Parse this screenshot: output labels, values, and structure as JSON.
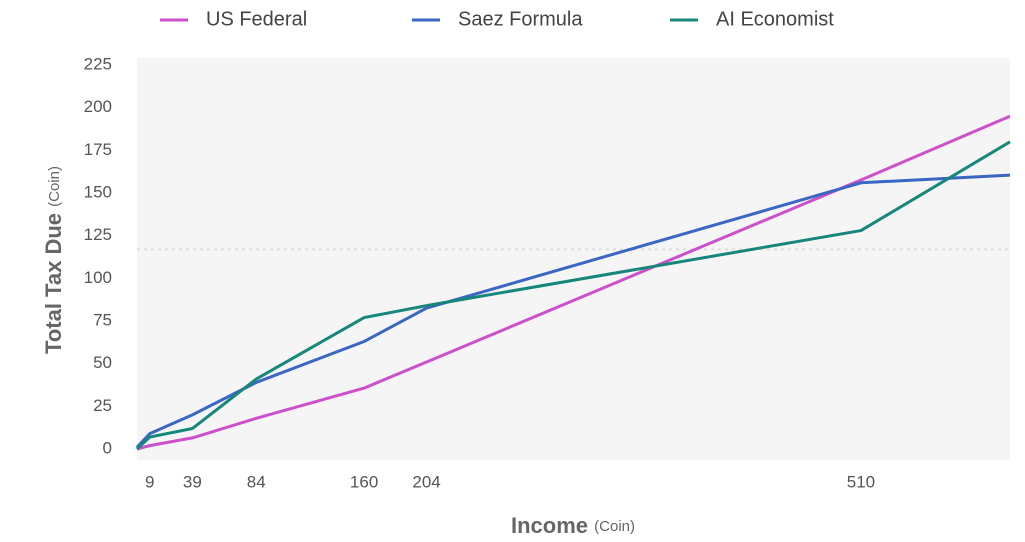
{
  "chart_data": {
    "type": "line",
    "xlabel": "Income",
    "xlabel_unit": "(Coin)",
    "ylabel": "Total Tax Due",
    "ylabel_unit": "(Coin)",
    "x": [
      0,
      9,
      39,
      84,
      160,
      204,
      510,
      615
    ],
    "xlim": [
      0,
      615
    ],
    "xticks": [
      9,
      39,
      84,
      160,
      204,
      510
    ],
    "ylim": [
      0,
      225
    ],
    "yticks": [
      0,
      25,
      50,
      75,
      100,
      125,
      150,
      175,
      200,
      225
    ],
    "hline": 117,
    "series": [
      {
        "name": "US Federal",
        "color": "#cc4fcc",
        "values": [
          0,
          2,
          6.5,
          18,
          35.7,
          51,
          157.6,
          195
        ]
      },
      {
        "name": "Saez Formula",
        "color": "#3a66c4",
        "values": [
          1,
          9,
          20,
          39,
          63,
          82.6,
          156,
          160.5
        ]
      },
      {
        "name": "AI Economist",
        "color": "#16877a",
        "values": [
          0,
          7,
          12,
          41,
          77,
          84,
          128,
          180
        ]
      }
    ]
  }
}
